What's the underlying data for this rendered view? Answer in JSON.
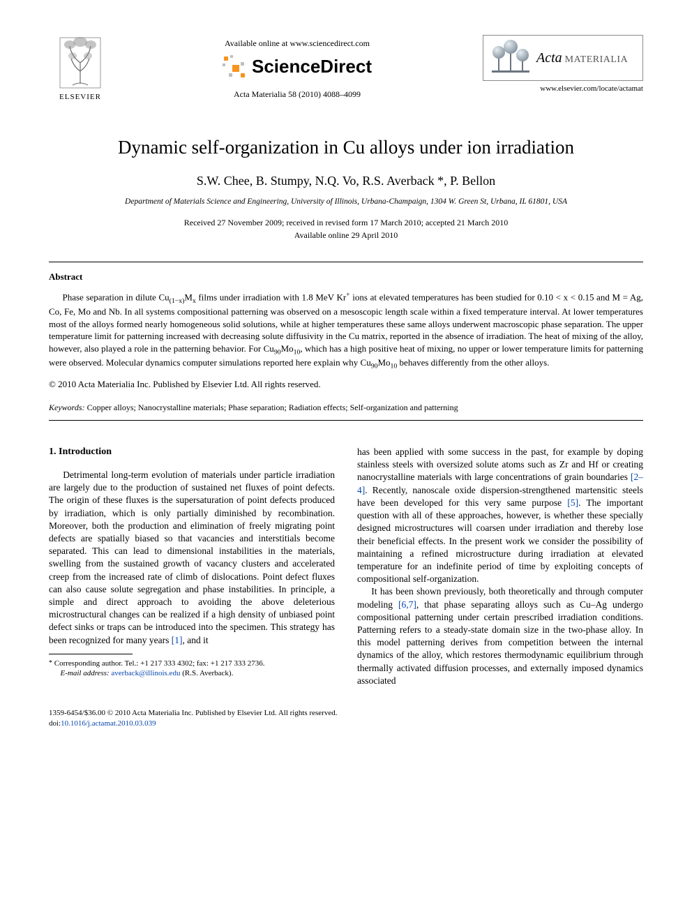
{
  "header": {
    "elsevier_label": "ELSEVIER",
    "available_online": "Available online at www.sciencedirect.com",
    "sciencedirect_label": "ScienceDirect",
    "journal_ref": "Acta Materialia 58 (2010) 4088–4099",
    "acta_title_italic": "Acta",
    "acta_title_rest": " MATERIALIA",
    "locate_url": "www.elsevier.com/locate/actamat"
  },
  "article": {
    "title": "Dynamic self-organization in Cu alloys under ion irradiation",
    "authors_html": "S.W. Chee, B. Stumpy, N.Q. Vo, R.S. Averback *, P. Bellon",
    "affiliation": "Department of Materials Science and Engineering, University of Illinois, Urbana-Champaign, 1304 W. Green St, Urbana, IL 61801, USA",
    "received": "Received 27 November 2009; received in revised form 17 March 2010; accepted 21 March 2010",
    "available": "Available online 29 April 2010"
  },
  "abstract": {
    "label": "Abstract",
    "text_html": "Phase separation in dilute Cu<sub>(1−x)</sub>M<sub>x</sub> films under irradiation with 1.8 MeV Kr<sup>+</sup> ions at elevated temperatures has been studied for 0.10 < x < 0.15 and M = Ag, Co, Fe, Mo and Nb. In all systems compositional patterning was observed on a mesoscopic length scale within a fixed temperature interval. At lower temperatures most of the alloys formed nearly homogeneous solid solutions, while at higher temperatures these same alloys underwent macroscopic phase separation. The upper temperature limit for patterning increased with decreasing solute diffusivity in the Cu matrix, reported in the absence of irradiation. The heat of mixing of the alloy, however, also played a role in the patterning behavior. For Cu<sub>90</sub>Mo<sub>10</sub>, which has a high positive heat of mixing, no upper or lower temperature limits for patterning were observed. Molecular dynamics computer simulations reported here explain why Cu<sub>90</sub>Mo<sub>10</sub> behaves differently from the other alloys.",
    "copyright": "© 2010 Acta Materialia Inc. Published by Elsevier Ltd. All rights reserved."
  },
  "keywords": {
    "label": "Keywords:",
    "text": " Copper alloys; Nanocrystalline materials; Phase separation; Radiation effects; Self-organization and patterning"
  },
  "body": {
    "section1_heading": "1. Introduction",
    "col1_html": "Detrimental long-term evolution of materials under particle irradiation are largely due to the production of sustained net fluxes of point defects. The origin of these fluxes is the supersaturation of point defects produced by irradiation, which is only partially diminished by recombination. Moreover, both the production and elimination of freely migrating point defects are spatially biased so that vacancies and interstitials become separated. This can lead to dimensional instabilities in the materials, swelling from the sustained growth of vacancy clusters and accelerated creep from the increased rate of climb of dislocations. Point defect fluxes can also cause solute segregation and phase instabilities. In principle, a simple and direct approach to avoiding the above deleterious microstructural changes can be realized if a high density of unbiased point defect sinks or traps can be introduced into the specimen. This strategy has been recognized for many years <span class=\"sup-link\">[1]</span>, and it",
    "col2_p1_html": "has been applied with some success in the past, for example by doping stainless steels with oversized solute atoms such as Zr and Hf or creating nanocrystalline materials with large concentrations of grain boundaries <span class=\"sup-link\">[2–4]</span>. Recently, nanoscale oxide dispersion-strengthened martensitic steels have been developed for this very same purpose <span class=\"sup-link\">[5]</span>. The important question with all of these approaches, however, is whether these specially designed microstructures will coarsen under irradiation and thereby lose their beneficial effects. In the present work we consider the possibility of maintaining a refined microstructure during irradiation at elevated temperature for an indefinite period of time by exploiting concepts of compositional self-organization.",
    "col2_p2_html": "It has been shown previously, both theoretically and through computer modeling <span class=\"sup-link\">[6,7]</span>, that phase separating alloys such as Cu–Ag undergo compositional patterning under certain prescribed irradiation conditions. Patterning refers to a steady-state domain size in the two-phase alloy. In this model patterning derives from competition between the internal dynamics of the alloy, which restores thermodynamic equilibrium through thermally activated diffusion processes, and externally imposed dynamics associated"
  },
  "footnote": {
    "corr": "Corresponding author. Tel.: +1 217 333 4302; fax: +1 217 333 2736.",
    "email_label": "E-mail address:",
    "email": "averback@illinois.edu",
    "email_tail": " (R.S. Averback)."
  },
  "footer": {
    "line1": "1359-6454/$36.00 © 2010 Acta Materialia Inc. Published by Elsevier Ltd. All rights reserved.",
    "doi_label": "doi:",
    "doi": "10.1016/j.actamat.2010.03.039"
  },
  "colors": {
    "link": "#0645ad",
    "text": "#000000",
    "border_gray": "#8a8a8a",
    "sd_orange": "#f7941e",
    "sd_gray": "#bfbfbf",
    "acta_sphere": "#9aa7b0",
    "acta_bar": "#6a7580"
  }
}
